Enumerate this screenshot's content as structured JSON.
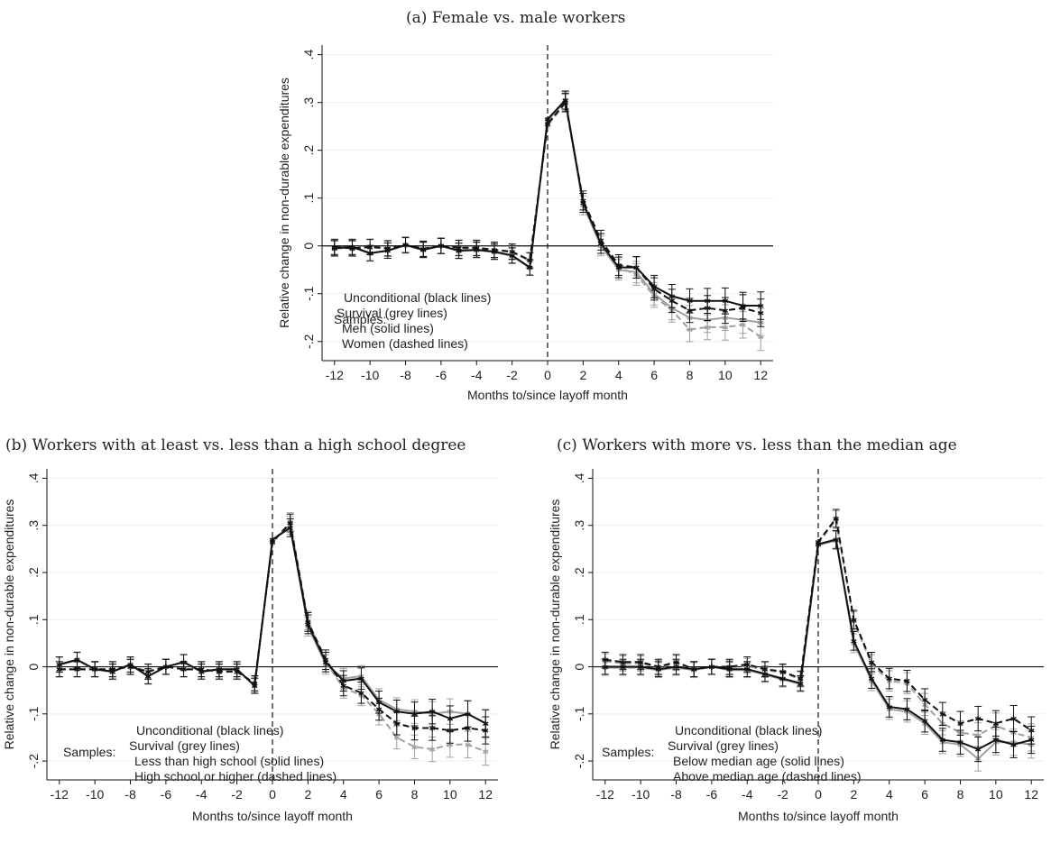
{
  "charts": [
    {
      "title": "(a) Female vs. male workers",
      "xlabel": "Months to/since layoff month",
      "ylabel": "Relative change in non-durable expenditures",
      "legend_title": "Samples:",
      "legend_items": [
        "Unconditional (black lines)",
        "Survival (grey lines)",
        "Men (solid lines)",
        "Women (dashed lines)"
      ]
    },
    {
      "title": "(b) Workers with at least vs. less than a high school degree",
      "xlabel": "Months to/since layoff month",
      "ylabel": "Relative change in non-durable expenditures",
      "legend_title": "Samples:",
      "legend_items": [
        "Unconditional (black lines)",
        "Survival (grey lines)",
        "Less than high school (solid lines)",
        "High school or higher (dashed lines)"
      ]
    },
    {
      "title": "(c) Workers with more vs. less than the median age",
      "xlabel": "Months to/since layoff month",
      "ylabel": "Relative change in non-durable expenditures",
      "legend_title": "Samples:",
      "legend_items": [
        "Unconditional (black lines)",
        "Survival (grey lines)",
        "Below median age (solid lines)",
        "Above median age (dashed lines)"
      ]
    }
  ],
  "chart_data": [
    {
      "type": "line",
      "x": [
        -12,
        -11,
        -10,
        -9,
        -8,
        -7,
        -6,
        -5,
        -4,
        -3,
        -2,
        -1,
        0,
        1,
        2,
        3,
        4,
        5,
        6,
        7,
        8,
        9,
        10,
        11,
        12
      ],
      "xticks": [
        "-12",
        "-10",
        "-8",
        "-6",
        "-4",
        "-2",
        "0",
        "2",
        "4",
        "6",
        "8",
        "10",
        "12"
      ],
      "yticks": [
        "-.2",
        "-.1",
        "0",
        ".1",
        ".2",
        ".3",
        ".4"
      ],
      "ylim": [
        -0.24,
        0.42
      ],
      "xlim": [
        -12.7,
        12.7
      ],
      "series": [
        {
          "color": "#111111",
          "dashed": false,
          "values": [
            -0.005,
            -0.002,
            -0.015,
            -0.01,
            0.002,
            -0.008,
            0,
            -0.01,
            -0.008,
            -0.012,
            -0.02,
            -0.045,
            0.265,
            0.305,
            0.09,
            0.005,
            -0.045,
            -0.045,
            -0.085,
            -0.105,
            -0.115,
            -0.115,
            -0.115,
            -0.125,
            -0.125
          ]
        },
        {
          "color": "#111111",
          "dashed": true,
          "values": [
            -0.002,
            -0.005,
            -0.002,
            -0.005,
            0.002,
            -0.006,
            0,
            -0.004,
            -0.004,
            -0.008,
            -0.012,
            -0.03,
            0.255,
            0.3,
            0.095,
            0.012,
            -0.04,
            -0.045,
            -0.09,
            -0.115,
            -0.135,
            -0.13,
            -0.135,
            -0.13,
            -0.14
          ]
        },
        {
          "color": "#a0a0a0",
          "dashed": false,
          "values": [
            -0.006,
            -0.003,
            -0.016,
            -0.01,
            0.001,
            -0.009,
            0,
            -0.011,
            -0.009,
            -0.013,
            -0.021,
            -0.046,
            0.262,
            0.303,
            0.085,
            0.0,
            -0.05,
            -0.055,
            -0.1,
            -0.13,
            -0.15,
            -0.155,
            -0.15,
            -0.155,
            -0.16
          ]
        },
        {
          "color": "#a0a0a0",
          "dashed": true,
          "values": [
            -0.003,
            -0.006,
            -0.003,
            -0.006,
            0.001,
            -0.007,
            0,
            -0.005,
            -0.005,
            -0.009,
            -0.013,
            -0.031,
            0.252,
            0.298,
            0.09,
            0.005,
            -0.045,
            -0.06,
            -0.105,
            -0.135,
            -0.175,
            -0.17,
            -0.17,
            -0.165,
            -0.19
          ]
        }
      ]
    },
    {
      "type": "line",
      "x": [
        -12,
        -11,
        -10,
        -9,
        -8,
        -7,
        -6,
        -5,
        -4,
        -3,
        -2,
        -1,
        0,
        1,
        2,
        3,
        4,
        5,
        6,
        7,
        8,
        9,
        10,
        11,
        12
      ],
      "xticks": [
        "-12",
        "-10",
        "-8",
        "-6",
        "-4",
        "-2",
        "0",
        "2",
        "4",
        "6",
        "8",
        "10",
        "12"
      ],
      "yticks": [
        "-.2",
        "-.1",
        "0",
        ".1",
        ".2",
        ".3",
        ".4"
      ],
      "ylim": [
        -0.24,
        0.42
      ],
      "xlim": [
        -12.7,
        12.7
      ],
      "series": [
        {
          "color": "#111111",
          "dashed": false,
          "values": [
            0.005,
            0.015,
            -0.005,
            -0.01,
            0.005,
            -0.02,
            0,
            0.01,
            -0.01,
            -0.005,
            -0.005,
            -0.04,
            0.27,
            0.295,
            0.09,
            0.01,
            -0.03,
            -0.025,
            -0.075,
            -0.095,
            -0.1,
            -0.095,
            -0.11,
            -0.1,
            -0.12
          ]
        },
        {
          "color": "#111111",
          "dashed": true,
          "values": [
            -0.005,
            -0.005,
            -0.005,
            -0.005,
            0.0,
            -0.01,
            0,
            -0.005,
            -0.005,
            -0.01,
            -0.01,
            -0.035,
            0.265,
            0.305,
            0.095,
            0.015,
            -0.04,
            -0.055,
            -0.09,
            -0.12,
            -0.13,
            -0.13,
            -0.135,
            -0.13,
            -0.135
          ]
        },
        {
          "color": "#a0a0a0",
          "dashed": false,
          "values": [
            0.004,
            0.014,
            -0.006,
            -0.011,
            0.004,
            -0.021,
            0,
            0.009,
            -0.011,
            -0.006,
            -0.006,
            -0.041,
            0.268,
            0.3,
            0.085,
            0.005,
            -0.025,
            -0.02,
            -0.07,
            -0.09,
            -0.095,
            -0.1,
            -0.095,
            -0.1,
            -0.12
          ]
        },
        {
          "color": "#a0a0a0",
          "dashed": true,
          "values": [
            -0.006,
            -0.006,
            -0.006,
            -0.006,
            -0.001,
            -0.011,
            0,
            -0.006,
            -0.006,
            -0.011,
            -0.011,
            -0.036,
            0.262,
            0.308,
            0.098,
            0.01,
            -0.045,
            -0.06,
            -0.1,
            -0.15,
            -0.17,
            -0.175,
            -0.165,
            -0.165,
            -0.18
          ]
        }
      ]
    },
    {
      "type": "line",
      "x": [
        -12,
        -11,
        -10,
        -9,
        -8,
        -7,
        -6,
        -5,
        -4,
        -3,
        -2,
        -1,
        0,
        1,
        2,
        3,
        4,
        5,
        6,
        7,
        8,
        9,
        10,
        11,
        12
      ],
      "xticks": [
        "-12",
        "-10",
        "-8",
        "-6",
        "-4",
        "-2",
        "0",
        "2",
        "4",
        "6",
        "8",
        "10",
        "12"
      ],
      "yticks": [
        "-.2",
        "-.1",
        "0",
        ".1",
        ".2",
        ".3",
        ".4"
      ],
      "ylim": [
        -0.24,
        0.42
      ],
      "xlim": [
        -12.7,
        12.7
      ],
      "series": [
        {
          "color": "#111111",
          "dashed": false,
          "values": [
            0.0,
            0.0,
            0.0,
            -0.005,
            0.0,
            -0.005,
            0,
            -0.005,
            -0.005,
            -0.015,
            -0.025,
            -0.035,
            0.26,
            0.27,
            0.055,
            -0.025,
            -0.085,
            -0.09,
            -0.115,
            -0.155,
            -0.16,
            -0.175,
            -0.155,
            -0.165,
            -0.155
          ]
        },
        {
          "color": "#111111",
          "dashed": true,
          "values": [
            0.015,
            0.01,
            0.01,
            0.0,
            0.01,
            -0.005,
            0,
            0.0,
            0.005,
            -0.005,
            -0.01,
            -0.025,
            0.265,
            0.315,
            0.1,
            0.01,
            -0.025,
            -0.03,
            -0.07,
            -0.1,
            -0.12,
            -0.11,
            -0.12,
            -0.11,
            -0.135
          ]
        },
        {
          "color": "#a0a0a0",
          "dashed": false,
          "values": [
            -0.002,
            -0.002,
            -0.002,
            -0.007,
            -0.002,
            -0.007,
            0,
            -0.007,
            -0.007,
            -0.017,
            -0.027,
            -0.037,
            0.258,
            0.268,
            0.05,
            -0.03,
            -0.09,
            -0.095,
            -0.12,
            -0.16,
            -0.165,
            -0.195,
            -0.16,
            -0.16,
            -0.165
          ]
        },
        {
          "color": "#a0a0a0",
          "dashed": true,
          "values": [
            0.012,
            0.007,
            0.007,
            -0.002,
            0.008,
            -0.007,
            0,
            -0.002,
            0.002,
            -0.007,
            -0.012,
            -0.027,
            0.262,
            0.312,
            0.097,
            0.005,
            -0.03,
            -0.035,
            -0.08,
            -0.12,
            -0.14,
            -0.145,
            -0.125,
            -0.14,
            -0.15
          ]
        }
      ]
    }
  ]
}
